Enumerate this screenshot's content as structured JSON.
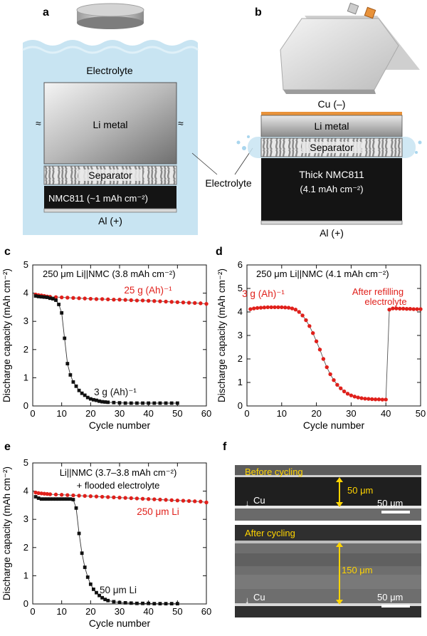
{
  "panels": {
    "a": {
      "letter": "a",
      "electrolyte": "Electrolyte",
      "li_metal": "Li metal",
      "separator": "Separator",
      "cathode": "NMC811 (~1 mAh cm⁻²)",
      "current_collector": "Al (+)"
    },
    "b": {
      "letter": "b",
      "anode_cc": "Cu (–)",
      "li_metal": "Li metal",
      "separator": "Separator",
      "cathode_line1": "Thick NMC811",
      "cathode_line2": "(4.1 mAh cm⁻²)",
      "current_collector": "Al (+)"
    },
    "shared_electrolyte_label": "Electrolyte",
    "c": {
      "letter": "c"
    },
    "d": {
      "letter": "d"
    },
    "e": {
      "letter": "e"
    },
    "f": {
      "letter": "f",
      "before": {
        "title": "Before cycling",
        "thickness": "50 μm",
        "cu": "Cu",
        "scale": "50 μm"
      },
      "after": {
        "title": "After cycling",
        "thickness": "150 μm",
        "cu": "Cu",
        "scale": "50 μm"
      }
    }
  },
  "colors": {
    "red": "#e0201b",
    "black": "#111111",
    "electrolyte": "#c8e4f2",
    "copper": "#e8923a"
  },
  "chart_data": [
    {
      "id": "c",
      "type": "scatter",
      "title": "250 μm Li||NMC (3.8 mAh cm⁻²)",
      "xlabel": "Cycle number",
      "ylabel": "Discharge capacity (mAh cm⁻²)",
      "xlim": [
        0,
        60
      ],
      "ylim": [
        0,
        5
      ],
      "xticks": [
        0,
        10,
        20,
        30,
        40,
        50,
        60
      ],
      "yticks": [
        0,
        1,
        2,
        3,
        4,
        5
      ],
      "series": [
        {
          "name": "25 g (Ah)⁻¹",
          "color": "#e0201b",
          "marker": "circle",
          "x": [
            1,
            2,
            3,
            4,
            5,
            6,
            8,
            10,
            12,
            14,
            16,
            18,
            20,
            22,
            24,
            26,
            28,
            30,
            32,
            34,
            36,
            38,
            40,
            42,
            44,
            46,
            48,
            50,
            52,
            54,
            56,
            58,
            60
          ],
          "y": [
            3.95,
            3.93,
            3.92,
            3.9,
            3.88,
            3.87,
            3.86,
            3.85,
            3.84,
            3.83,
            3.82,
            3.81,
            3.8,
            3.79,
            3.79,
            3.78,
            3.77,
            3.77,
            3.76,
            3.75,
            3.74,
            3.74,
            3.73,
            3.72,
            3.71,
            3.7,
            3.69,
            3.68,
            3.67,
            3.66,
            3.65,
            3.64,
            3.62
          ]
        },
        {
          "name": "3 g (Ah)⁻¹",
          "color": "#111111",
          "marker": "square",
          "x": [
            1,
            2,
            3,
            4,
            5,
            6,
            7,
            8,
            9,
            10,
            11,
            12,
            13,
            14,
            15,
            16,
            17,
            18,
            19,
            20,
            21,
            22,
            23,
            24,
            25,
            26,
            28,
            30,
            32,
            34,
            36,
            38,
            40,
            42,
            44,
            46,
            48,
            50
          ],
          "y": [
            3.9,
            3.88,
            3.87,
            3.86,
            3.85,
            3.82,
            3.8,
            3.75,
            3.6,
            3.3,
            2.4,
            1.5,
            1.1,
            0.85,
            0.7,
            0.55,
            0.45,
            0.38,
            0.3,
            0.25,
            0.22,
            0.2,
            0.17,
            0.15,
            0.14,
            0.13,
            0.12,
            0.11,
            0.1,
            0.1,
            0.1,
            0.1,
            0.1,
            0.1,
            0.1,
            0.1,
            0.1,
            0.1
          ]
        }
      ]
    },
    {
      "id": "d",
      "type": "scatter",
      "title": "250 μm Li||NMC (4.1 mAh cm⁻²)",
      "xlabel": "Cycle number",
      "ylabel": "Discharge capacity (mAh cm⁻²)",
      "xlim": [
        0,
        50
      ],
      "ylim": [
        0,
        6
      ],
      "xticks": [
        0,
        10,
        20,
        30,
        40,
        50
      ],
      "yticks": [
        0,
        1,
        2,
        3,
        4,
        5,
        6
      ],
      "annotations": [
        "3 g (Ah)⁻¹",
        "After refilling",
        "electrolyte"
      ],
      "series": [
        {
          "name": "3 g (Ah)⁻¹",
          "color": "#e0201b",
          "marker": "circle",
          "x": [
            1,
            2,
            3,
            4,
            5,
            6,
            7,
            8,
            9,
            10,
            11,
            12,
            13,
            14,
            15,
            16,
            17,
            18,
            19,
            20,
            21,
            22,
            23,
            24,
            25,
            26,
            27,
            28,
            29,
            30,
            31,
            32,
            33,
            34,
            35,
            36,
            37,
            38,
            39,
            40,
            41,
            42,
            43,
            44,
            45,
            46,
            47,
            48,
            49,
            50
          ],
          "y": [
            4.12,
            4.15,
            4.17,
            4.18,
            4.19,
            4.2,
            4.2,
            4.2,
            4.2,
            4.2,
            4.19,
            4.18,
            4.15,
            4.1,
            4.0,
            3.85,
            3.65,
            3.4,
            3.1,
            2.75,
            2.4,
            2.0,
            1.65,
            1.35,
            1.1,
            0.9,
            0.75,
            0.62,
            0.52,
            0.45,
            0.4,
            0.36,
            0.33,
            0.31,
            0.3,
            0.29,
            0.28,
            0.28,
            0.27,
            0.27,
            4.1,
            4.15,
            4.15,
            4.14,
            4.14,
            4.13,
            4.13,
            4.12,
            4.12,
            4.12
          ]
        }
      ]
    },
    {
      "id": "e",
      "type": "scatter",
      "title": "Li||NMC (3.7–3.8 mAh cm⁻²)",
      "subtitle": "+ flooded electrolyte",
      "xlabel": "Cycle number",
      "ylabel": "Discharge capacity (mAh cm⁻²)",
      "xlim": [
        0,
        60
      ],
      "ylim": [
        0,
        5
      ],
      "xticks": [
        0,
        10,
        20,
        30,
        40,
        50,
        60
      ],
      "yticks": [
        0,
        1,
        2,
        3,
        4,
        5
      ],
      "series": [
        {
          "name": "250 μm Li",
          "color": "#e0201b",
          "marker": "circle",
          "x": [
            1,
            2,
            3,
            4,
            5,
            6,
            8,
            10,
            12,
            14,
            16,
            18,
            20,
            22,
            24,
            26,
            28,
            30,
            32,
            34,
            36,
            38,
            40,
            42,
            44,
            46,
            48,
            50,
            52,
            54,
            56,
            58,
            60
          ],
          "y": [
            3.95,
            3.93,
            3.92,
            3.91,
            3.9,
            3.89,
            3.88,
            3.87,
            3.86,
            3.85,
            3.84,
            3.83,
            3.82,
            3.81,
            3.8,
            3.79,
            3.78,
            3.77,
            3.76,
            3.75,
            3.74,
            3.73,
            3.72,
            3.71,
            3.7,
            3.69,
            3.68,
            3.67,
            3.66,
            3.65,
            3.64,
            3.63,
            3.6
          ]
        },
        {
          "name": "50 μm Li",
          "color": "#111111",
          "marker": "square",
          "x": [
            1,
            2,
            3,
            4,
            5,
            6,
            7,
            8,
            9,
            10,
            11,
            12,
            13,
            14,
            15,
            16,
            17,
            18,
            19,
            20,
            21,
            22,
            23,
            24,
            25,
            26,
            28,
            30,
            32,
            34,
            36,
            38,
            40,
            42,
            44,
            46,
            48,
            50
          ],
          "y": [
            3.8,
            3.75,
            3.72,
            3.72,
            3.72,
            3.72,
            3.72,
            3.72,
            3.72,
            3.72,
            3.72,
            3.72,
            3.72,
            3.7,
            3.4,
            2.5,
            1.8,
            1.3,
            0.95,
            0.7,
            0.52,
            0.4,
            0.3,
            0.22,
            0.16,
            0.12,
            0.08,
            0.05,
            0.04,
            0.03,
            0.02,
            0.02,
            0.02,
            0.01,
            0.01,
            0.01,
            0.01,
            0.01
          ]
        }
      ]
    }
  ]
}
